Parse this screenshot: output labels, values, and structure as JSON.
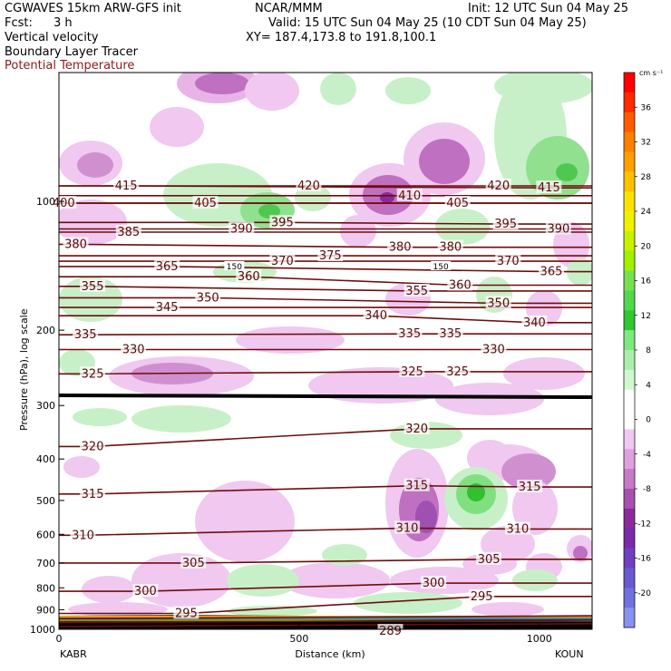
{
  "header": {
    "model": "CGWAVES 15km ARW-GFS init",
    "org": "NCAR/MMM",
    "init": "Init: 12 UTC Sun 04 May 25",
    "fcst_label": "Fcst:",
    "fcst_value": "3 h",
    "valid": "Valid: 15 UTC Sun 04 May 25 (10 CDT Sun 04 May 25)",
    "xy": "XY= 187.4,173.8 to 191.8,100.1",
    "field1": "Vertical velocity",
    "field2": "Boundary Layer Tracer",
    "field3": "Potential Temperature",
    "field3_color": "#8b1a1a"
  },
  "chart_data": {
    "type": "heatmap",
    "title": "",
    "xlabel": "Distance (km)",
    "ylabel": "Pressure (hPa), log scale",
    "x_endpoints": {
      "left": "KABR",
      "right": "KOUN"
    },
    "x_ticks": [
      "0",
      "500",
      "1000"
    ],
    "x_tick_values": [
      0,
      500,
      1000
    ],
    "xlim": [
      0,
      1110
    ],
    "y_scale": "log",
    "ylim": [
      1000,
      50
    ],
    "y_ticks": [
      "100",
      "200",
      "300",
      "400",
      "500",
      "600",
      "700",
      "800",
      "900",
      "1000"
    ],
    "y_tick_values": [
      100,
      200,
      300,
      400,
      500,
      600,
      700,
      800,
      900,
      1000
    ],
    "colorbar": {
      "units": "cm s⁻¹",
      "labels": [
        "36",
        "32",
        "28",
        "24",
        "20",
        "16",
        "12",
        "8",
        "4",
        "0",
        "-4",
        "-8",
        "-12",
        "-16",
        "-20"
      ],
      "label_values": [
        36,
        32,
        28,
        24,
        20,
        16,
        12,
        8,
        4,
        0,
        -4,
        -8,
        -12,
        -16,
        -20
      ],
      "colors": [
        "#ff0000",
        "#ff2a00",
        "#ff5a00",
        "#ff8000",
        "#ffa000",
        "#ffc000",
        "#ffe000",
        "#f0f000",
        "#c8f000",
        "#a0f000",
        "#78e050",
        "#50d850",
        "#30c830",
        "#80e880",
        "#a8f0a8",
        "#d0f8d0",
        "#ffffff",
        "#ffffff",
        "#f0c8f0",
        "#e0a0e0",
        "#c878c8",
        "#a850b0",
        "#8c2a9c",
        "#7a2aa8",
        "#7040c0",
        "#6a5ad0",
        "#7070e0",
        "#8890f0"
      ]
    },
    "theta_isentrope_labels": [
      {
        "value": "415",
        "x": 140,
        "p": 92
      },
      {
        "value": "420",
        "x": 520,
        "p": 92
      },
      {
        "value": "420",
        "x": 915,
        "p": 92
      },
      {
        "value": "415",
        "x": 1020,
        "p": 93
      },
      {
        "value": "410",
        "x": 730,
        "p": 97
      },
      {
        "value": "400",
        "x": 10,
        "p": 101
      },
      {
        "value": "405",
        "x": 305,
        "p": 101
      },
      {
        "value": "405",
        "x": 830,
        "p": 101
      },
      {
        "value": "385",
        "x": 145,
        "p": 118
      },
      {
        "value": "390",
        "x": 380,
        "p": 116
      },
      {
        "value": "395",
        "x": 465,
        "p": 112
      },
      {
        "value": "395",
        "x": 930,
        "p": 113
      },
      {
        "value": "390",
        "x": 1040,
        "p": 116
      },
      {
        "value": "380",
        "x": 35,
        "p": 126
      },
      {
        "value": "380",
        "x": 710,
        "p": 128
      },
      {
        "value": "380",
        "x": 815,
        "p": 128
      },
      {
        "value": "375",
        "x": 565,
        "p": 134
      },
      {
        "value": "370",
        "x": 465,
        "p": 138
      },
      {
        "value": "370",
        "x": 935,
        "p": 138
      },
      {
        "value": "365",
        "x": 225,
        "p": 142
      },
      {
        "value": "365",
        "x": 1025,
        "p": 146
      },
      {
        "value": "360",
        "x": 395,
        "p": 150
      },
      {
        "value": "360",
        "x": 835,
        "p": 157
      },
      {
        "value": "355",
        "x": 70,
        "p": 158
      },
      {
        "value": "355",
        "x": 745,
        "p": 162
      },
      {
        "value": "350",
        "x": 310,
        "p": 168
      },
      {
        "value": "350",
        "x": 915,
        "p": 173
      },
      {
        "value": "345",
        "x": 225,
        "p": 177
      },
      {
        "value": "340",
        "x": 660,
        "p": 185
      },
      {
        "value": "340",
        "x": 990,
        "p": 192
      },
      {
        "value": "335",
        "x": 55,
        "p": 205
      },
      {
        "value": "335",
        "x": 730,
        "p": 204
      },
      {
        "value": "335",
        "x": 815,
        "p": 204
      },
      {
        "value": "330",
        "x": 155,
        "p": 222
      },
      {
        "value": "330",
        "x": 905,
        "p": 222
      },
      {
        "value": "325",
        "x": 70,
        "p": 253
      },
      {
        "value": "325",
        "x": 735,
        "p": 250
      },
      {
        "value": "325",
        "x": 830,
        "p": 250
      },
      {
        "value": "320",
        "x": 70,
        "p": 374
      },
      {
        "value": "320",
        "x": 745,
        "p": 340
      },
      {
        "value": "315",
        "x": 70,
        "p": 483
      },
      {
        "value": "315",
        "x": 745,
        "p": 462
      },
      {
        "value": "315",
        "x": 980,
        "p": 465
      },
      {
        "value": "310",
        "x": 50,
        "p": 603
      },
      {
        "value": "310",
        "x": 725,
        "p": 580
      },
      {
        "value": "310",
        "x": 955,
        "p": 583
      },
      {
        "value": "305",
        "x": 280,
        "p": 700
      },
      {
        "value": "305",
        "x": 895,
        "p": 686
      },
      {
        "value": "300",
        "x": 180,
        "p": 815
      },
      {
        "value": "300",
        "x": 780,
        "p": 780
      },
      {
        "value": "295",
        "x": 265,
        "p": 918
      },
      {
        "value": "295",
        "x": 880,
        "p": 838
      },
      {
        "value": "289",
        "x": 690,
        "p": 1010
      }
    ],
    "tracer_labels": [
      {
        "value": "150",
        "x": 365,
        "p": 142
      },
      {
        "value": "150",
        "x": 795,
        "p": 142
      }
    ]
  }
}
